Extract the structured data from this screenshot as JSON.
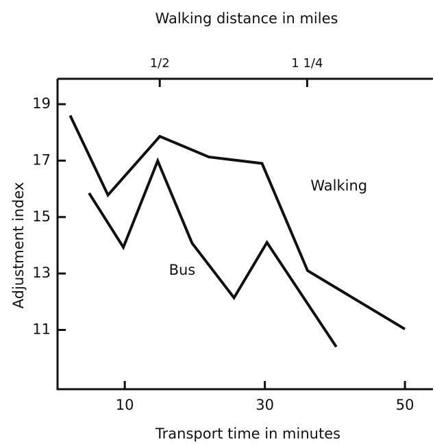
{
  "chart_data": {
    "type": "line",
    "x2label": "Walking distance in miles",
    "xlabel": "Transport time in minutes",
    "ylabel": "Adjustment index",
    "xlim": [
      0.4,
      54
    ],
    "xticks": [
      10,
      30,
      50
    ],
    "x2lim": [
      -0.02,
      1.89
    ],
    "x2ticks": [
      {
        "value": 0.5,
        "label": "1/2"
      },
      {
        "value": 1.25,
        "label": "1 1/4"
      }
    ],
    "ylim": [
      8.9,
      19.9
    ],
    "yticks": [
      11,
      13,
      15,
      17,
      19
    ],
    "series": [
      {
        "name": "Walking",
        "color": "#111111",
        "x": [
          2.2,
          7.6,
          15,
          22,
          29.6,
          36.1,
          50
        ],
        "values": [
          18.6,
          15.78,
          17.86,
          17.13,
          16.9,
          13.1,
          11.03
        ]
      },
      {
        "name": "Bus",
        "color": "#111111",
        "x": [
          4.9,
          9.8,
          14.7,
          19.6,
          25.6,
          30.3,
          40.2
        ],
        "values": [
          15.85,
          13.93,
          16.99,
          14.08,
          12.14,
          14.1,
          10.4
        ]
      }
    ]
  }
}
